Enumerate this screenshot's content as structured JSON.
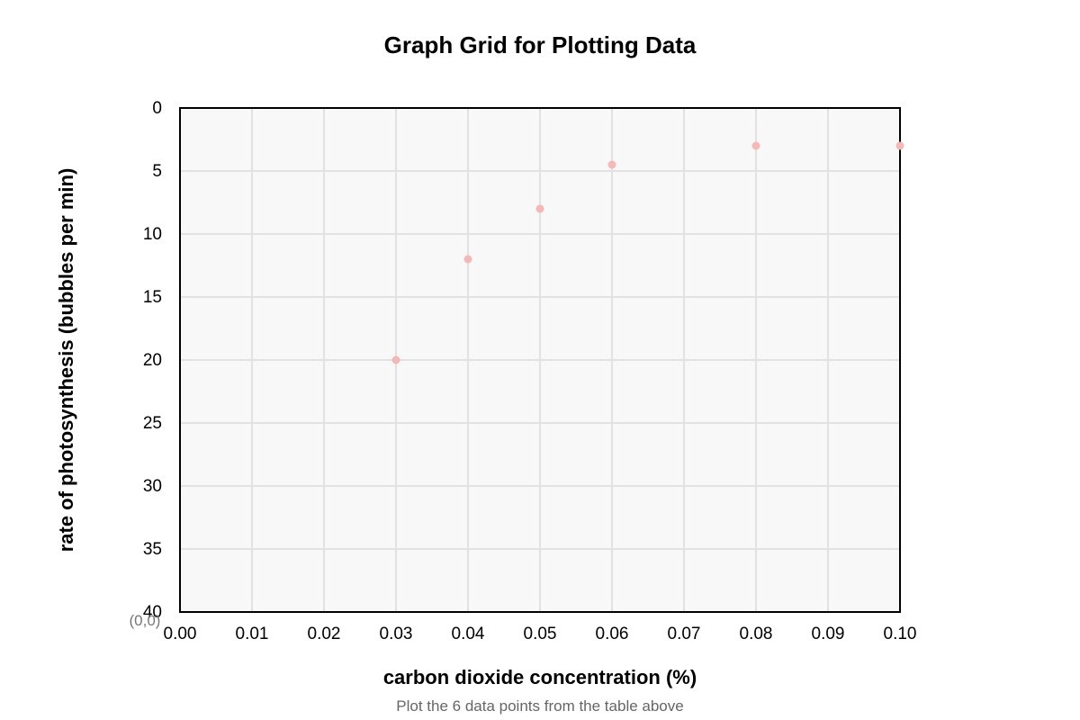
{
  "chart_data": {
    "type": "scatter",
    "title": "Graph Grid for Plotting Data",
    "xlabel": "carbon dioxide concentration (%)",
    "ylabel": "rate of photosynthesis (bubbles per min)",
    "x_ticks": [
      "0.00",
      "0.01",
      "0.02",
      "0.03",
      "0.04",
      "0.05",
      "0.06",
      "0.07",
      "0.08",
      "0.09",
      "0.10"
    ],
    "y_ticks": [
      "0",
      "5",
      "10",
      "15",
      "20",
      "25",
      "30",
      "35",
      "40"
    ],
    "xlim": [
      0,
      0.1
    ],
    "ylim": [
      40,
      0
    ],
    "y_axis_inverted": true,
    "grid": true,
    "origin_label": "(0,0)",
    "caption": "Plot the 6 data points from the table above",
    "point_color": "#f4b9b7",
    "plot_background": "#f8f8f8",
    "grid_color": "#e2e2e2",
    "points": [
      {
        "x": 0.03,
        "y": 20
      },
      {
        "x": 0.04,
        "y": 12
      },
      {
        "x": 0.05,
        "y": 8
      },
      {
        "x": 0.06,
        "y": 4.5
      },
      {
        "x": 0.08,
        "y": 3
      },
      {
        "x": 0.1,
        "y": 3
      }
    ]
  }
}
